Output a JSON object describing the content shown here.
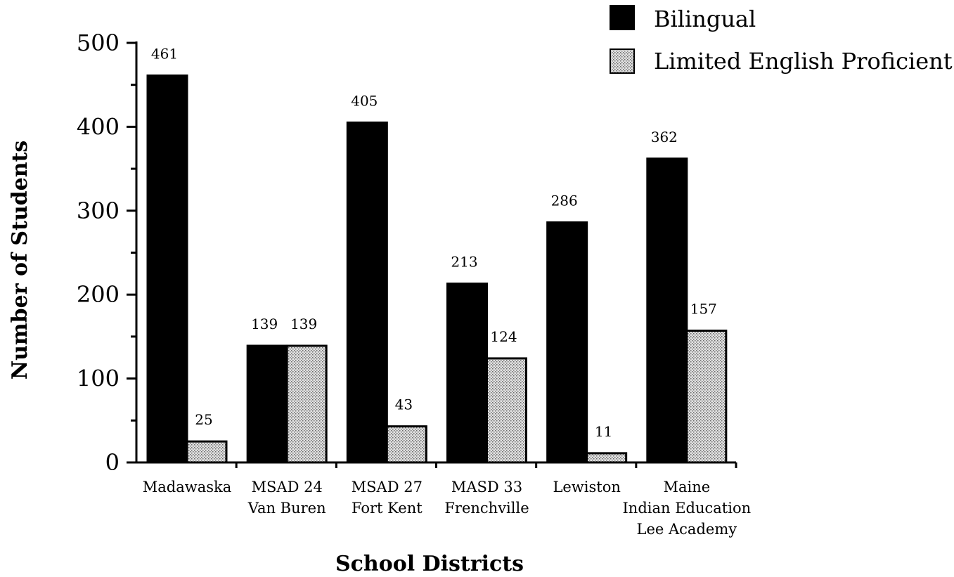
{
  "chart_data": {
    "type": "bar",
    "title": "",
    "xlabel": "School Districts",
    "ylabel": "Number of Students",
    "ylim": [
      0,
      500
    ],
    "yticks": [
      "0",
      "100",
      "200",
      "300",
      "400",
      "500"
    ],
    "grid": false,
    "legend_position": "top-right",
    "categories": [
      [
        "Madawaska"
      ],
      [
        "MSAD 24",
        "Van Buren"
      ],
      [
        "MSAD 27",
        "Fort Kent"
      ],
      [
        "MASD 33",
        "Frenchville"
      ],
      [
        "Lewiston"
      ],
      [
        "Maine",
        "Indian Education",
        "Lee Academy"
      ]
    ],
    "series": [
      {
        "name": "Bilingual",
        "color": "#000000",
        "pattern": "solid",
        "values": [
          461,
          139,
          405,
          213,
          286,
          362
        ],
        "labels": [
          "461",
          "139",
          "405",
          "213",
          "286",
          "362"
        ]
      },
      {
        "name": "Limited English Proficient",
        "color": "#c8c8c8",
        "pattern": "stipple",
        "values": [
          25,
          139,
          43,
          124,
          11,
          157
        ],
        "labels": [
          "25",
          "139",
          "43",
          "124",
          "11",
          "157"
        ]
      }
    ]
  }
}
